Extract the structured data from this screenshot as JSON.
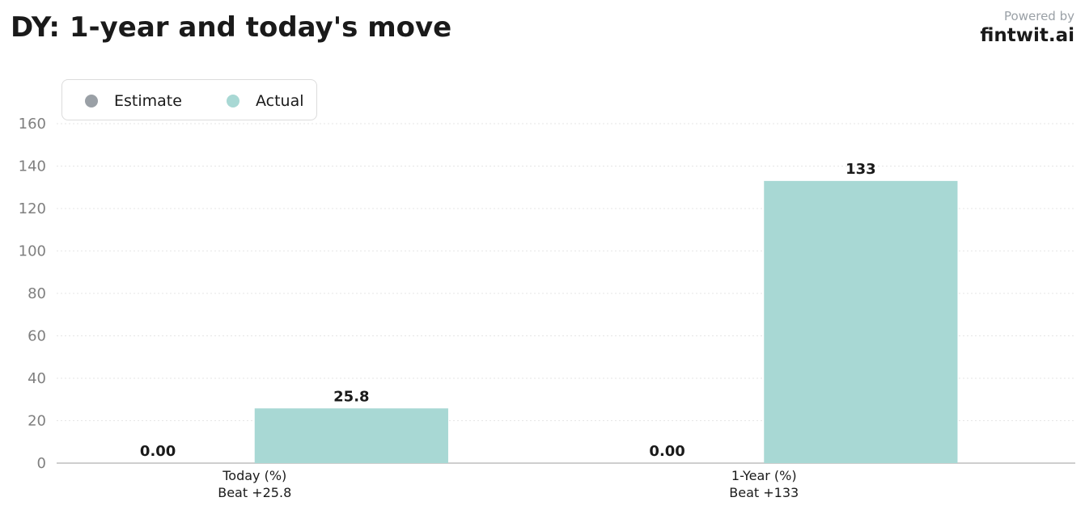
{
  "header": {
    "title": "DY: 1-year and today's move",
    "powered_by": "Powered by",
    "brand": "fintwit.ai"
  },
  "colors": {
    "estimate": "#9aa0a6",
    "actual": "#a8d8d4",
    "grid": "#e6e6e6",
    "axis": "#bdbdbd"
  },
  "chart_data": {
    "type": "bar",
    "title": "DY: 1-year and today's move",
    "categories": [
      "Today (%)",
      "1-Year (%)"
    ],
    "category_sublabels": [
      "Beat +25.8",
      "Beat +133"
    ],
    "series": [
      {
        "name": "Estimate",
        "values": [
          0,
          0
        ],
        "labels": [
          "0.00",
          "0.00"
        ]
      },
      {
        "name": "Actual",
        "values": [
          25.8,
          133
        ],
        "labels": [
          "25.8",
          "133"
        ]
      }
    ],
    "ylim": [
      0,
      160
    ],
    "yticks": [
      0,
      20,
      40,
      60,
      80,
      100,
      120,
      140,
      160
    ],
    "grid": true,
    "legend_position": "top-left",
    "xlabel": "",
    "ylabel": ""
  }
}
